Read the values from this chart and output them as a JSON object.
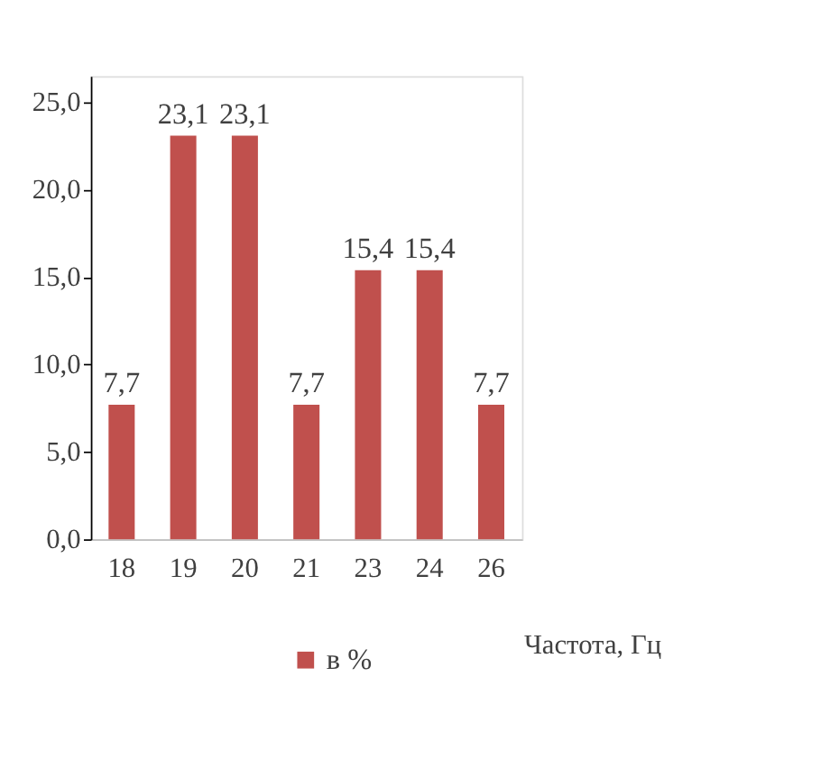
{
  "chart_data": {
    "type": "bar",
    "categories": [
      "18",
      "19",
      "20",
      "21",
      "23",
      "24",
      "26"
    ],
    "series": [
      {
        "name": "в %",
        "color": "#c0504d",
        "values": [
          7.7,
          23.1,
          23.1,
          7.7,
          15.4,
          15.4,
          7.7
        ],
        "value_labels": [
          "7,7",
          "23,1",
          "23,1",
          "7,7",
          "15,4",
          "15,4",
          "7,7"
        ]
      }
    ],
    "xlabel": "Частота, Гц",
    "ylim": [
      0,
      26.5
    ],
    "yticks": [
      {
        "value": 0,
        "label": "0,0"
      },
      {
        "value": 5,
        "label": "5,0"
      },
      {
        "value": 10,
        "label": "10,0"
      },
      {
        "value": 15,
        "label": "15,0"
      },
      {
        "value": 20,
        "label": "20,0"
      },
      {
        "value": 25,
        "label": "25,0"
      }
    ],
    "grid": false,
    "legend": "bottom"
  }
}
